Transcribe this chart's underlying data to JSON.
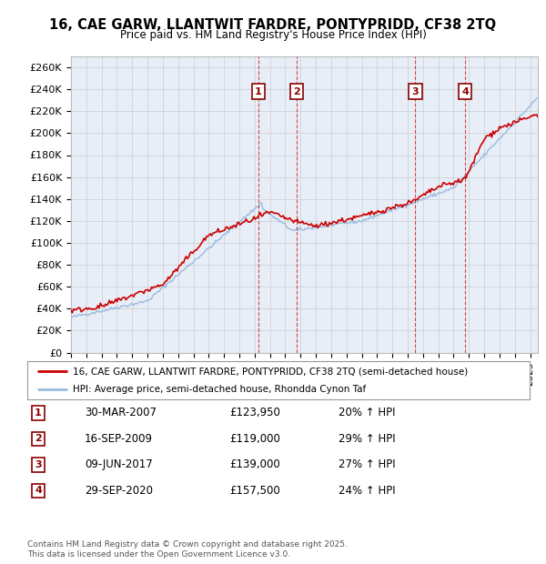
{
  "title": "16, CAE GARW, LLANTWIT FARDRE, PONTYPRIDD, CF38 2TQ",
  "subtitle": "Price paid vs. HM Land Registry's House Price Index (HPI)",
  "ylabel_ticks": [
    "£0",
    "£20K",
    "£40K",
    "£60K",
    "£80K",
    "£100K",
    "£120K",
    "£140K",
    "£160K",
    "£180K",
    "£200K",
    "£220K",
    "£240K",
    "£260K"
  ],
  "ytick_values": [
    0,
    20000,
    40000,
    60000,
    80000,
    100000,
    120000,
    140000,
    160000,
    180000,
    200000,
    220000,
    240000,
    260000
  ],
  "ylim": [
    0,
    270000
  ],
  "xlim_start": 1995.0,
  "xlim_end": 2025.5,
  "background_color": "#ffffff",
  "grid_color": "#cccccc",
  "plot_bg_color": "#e8eef8",
  "legend_entries": [
    "16, CAE GARW, LLANTWIT FARDRE, PONTYPRIDD, CF38 2TQ (semi-detached house)",
    "HPI: Average price, semi-detached house, Rhondda Cynon Taf"
  ],
  "line_colors": [
    "#cc0000",
    "#99bbdd"
  ],
  "transaction_markers": [
    {
      "id": 1,
      "date": "30-MAR-2007",
      "price": 123950,
      "pct": "20%",
      "year": 2007.25
    },
    {
      "id": 2,
      "date": "16-SEP-2009",
      "price": 119000,
      "pct": "29%",
      "year": 2009.75
    },
    {
      "id": 3,
      "date": "09-JUN-2017",
      "price": 139000,
      "pct": "27%",
      "year": 2017.5
    },
    {
      "id": 4,
      "date": "29-SEP-2020",
      "price": 157500,
      "pct": "24%",
      "year": 2020.75
    }
  ],
  "footer_line1": "Contains HM Land Registry data © Crown copyright and database right 2025.",
  "footer_line2": "This data is licensed under the Open Government Licence v3.0.",
  "table_rows": [
    {
      "id": 1,
      "date": "30-MAR-2007",
      "price": "£123,950",
      "pct": "20% ↑ HPI"
    },
    {
      "id": 2,
      "date": "16-SEP-2009",
      "price": "£119,000",
      "pct": "29% ↑ HPI"
    },
    {
      "id": 3,
      "date": "09-JUN-2017",
      "price": "£139,000",
      "pct": "27% ↑ HPI"
    },
    {
      "id": 4,
      "date": "29-SEP-2020",
      "price": "£157,500",
      "pct": "24% ↑ HPI"
    }
  ]
}
